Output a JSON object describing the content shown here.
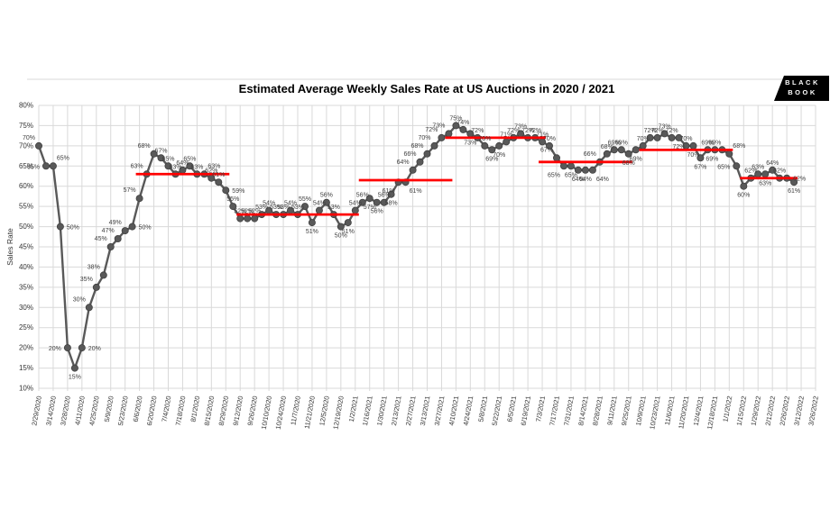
{
  "logo": {
    "line1": "BLACK",
    "line2": "BOOK",
    "bg": "#000000",
    "fg": "#ffffff"
  },
  "chart_data": {
    "type": "line",
    "title": "Estimated Average Weekly Sales Rate at US Auctions in 2020 / 2021",
    "xlabel": "",
    "ylabel": "Sales Rate",
    "ylim": [
      10,
      80
    ],
    "ytick_step": 5,
    "ytick_format": "percent",
    "grid": true,
    "legend": "none",
    "colors": {
      "line": "#595959",
      "marker_fill": "#595959",
      "marker_edge": "#404040",
      "trend": "#FF0000",
      "grid": "#D9D9D9",
      "axis_text": "#333333",
      "data_label": "#404040"
    },
    "x_tick_labels": [
      "2/29/2020",
      "3/14/2020",
      "3/28/2020",
      "4/11/2020",
      "4/25/2020",
      "5/9/2020",
      "5/23/2020",
      "6/6/2020",
      "6/20/2020",
      "7/4/2020",
      "7/18/2020",
      "8/1/2020",
      "8/15/2020",
      "8/29/2020",
      "9/12/2020",
      "9/26/2020",
      "10/10/2020",
      "10/24/2020",
      "11/7/2020",
      "11/21/2020",
      "12/5/2020",
      "12/19/2020",
      "1/2/2021",
      "1/16/2021",
      "1/30/2021",
      "2/13/2021",
      "2/27/2021",
      "3/13/2021",
      "3/27/2021",
      "4/10/2021",
      "4/24/2021",
      "5/8/2021",
      "5/22/2021",
      "6/5/2021",
      "6/19/2021",
      "7/3/2021",
      "7/17/2021",
      "7/31/2021",
      "8/14/2021",
      "8/28/2021",
      "9/11/2021",
      "9/25/2021",
      "10/9/2021",
      "10/23/2021",
      "11/6/2021",
      "11/20/2021",
      "12/4/2021",
      "12/18/2021",
      "1/1/2022",
      "1/15/2022",
      "1/29/2022",
      "2/12/2022",
      "2/26/2022",
      "3/12/2022",
      "3/26/2022"
    ],
    "points": [
      [
        "2/29/2020",
        70,
        "al"
      ],
      [
        "3/7/2020",
        65,
        "l"
      ],
      [
        "3/14/2020",
        65,
        "ar"
      ],
      [
        "3/21/2020",
        50,
        "r"
      ],
      [
        "3/28/2020",
        20,
        "l"
      ],
      [
        "4/4/2020",
        15,
        "b"
      ],
      [
        "4/11/2020",
        20,
        "r"
      ],
      [
        "4/18/2020",
        30,
        "al"
      ],
      [
        "4/25/2020",
        35,
        "al"
      ],
      [
        "5/2/2020",
        38,
        "al"
      ],
      [
        "5/9/2020",
        45,
        "al"
      ],
      [
        "5/16/2020",
        47,
        "al"
      ],
      [
        "5/23/2020",
        49,
        "al"
      ],
      [
        "5/30/2020",
        50,
        "r"
      ],
      [
        "6/6/2020",
        57,
        "al"
      ],
      [
        "6/13/2020",
        63,
        "al"
      ],
      [
        "6/20/2020",
        68,
        "al"
      ],
      [
        "6/27/2020",
        67,
        "a"
      ],
      [
        "7/4/2020",
        65,
        "a"
      ],
      [
        "7/11/2020",
        63,
        "a"
      ],
      [
        "7/18/2020",
        64,
        "a"
      ],
      [
        "7/25/2020",
        65,
        "a"
      ],
      [
        "8/1/2020",
        63,
        "a"
      ],
      [
        "8/8/2020",
        63,
        "ar"
      ],
      [
        "8/15/2020",
        62,
        "a"
      ],
      [
        "8/22/2020",
        61,
        "a"
      ],
      [
        "8/29/2020",
        59,
        "r"
      ],
      [
        "9/5/2020",
        55,
        "a"
      ],
      [
        "9/12/2020",
        52,
        "a"
      ],
      [
        "9/19/2020",
        52,
        "a"
      ],
      [
        "9/26/2020",
        52,
        "a"
      ],
      [
        "10/3/2020",
        53,
        "a"
      ],
      [
        "10/10/2020",
        54,
        "a"
      ],
      [
        "10/17/2020",
        53,
        "a"
      ],
      [
        "10/24/2020",
        53,
        "a"
      ],
      [
        "10/31/2020",
        54,
        "a"
      ],
      [
        "11/7/2020",
        53,
        "a"
      ],
      [
        "11/14/2020",
        55,
        "a"
      ],
      [
        "11/21/2020",
        51,
        "b"
      ],
      [
        "11/28/2020",
        54,
        "a"
      ],
      [
        "12/5/2020",
        56,
        "a"
      ],
      [
        "12/12/2020",
        53,
        "a"
      ],
      [
        "12/19/2020",
        50,
        "b"
      ],
      [
        "12/26/2020",
        51,
        "b"
      ],
      [
        "1/2/2021",
        54,
        "a"
      ],
      [
        "1/9/2021",
        56,
        "a"
      ],
      [
        "1/16/2021",
        57,
        "b"
      ],
      [
        "1/23/2021",
        56,
        "b"
      ],
      [
        "1/30/2021",
        56,
        "a"
      ],
      [
        "2/6/2021",
        58,
        "b"
      ],
      [
        "2/13/2021",
        61,
        "bl"
      ],
      [
        "2/20/2021",
        61,
        "br"
      ],
      [
        "2/27/2021",
        64,
        "al"
      ],
      [
        "3/6/2021",
        66,
        "al"
      ],
      [
        "3/13/2021",
        68,
        "al"
      ],
      [
        "3/20/2021",
        70,
        "al"
      ],
      [
        "3/27/2021",
        72,
        "al"
      ],
      [
        "4/3/2021",
        73,
        "al"
      ],
      [
        "4/10/2021",
        75,
        "a"
      ],
      [
        "4/17/2021",
        74,
        "a"
      ],
      [
        "4/24/2021",
        73,
        "b"
      ],
      [
        "5/1/2021",
        72,
        "a"
      ],
      [
        "5/8/2021",
        70,
        "a"
      ],
      [
        "5/15/2021",
        69,
        "b"
      ],
      [
        "5/22/2021",
        70,
        "b"
      ],
      [
        "5/29/2021",
        71,
        "a"
      ],
      [
        "6/5/2021",
        72,
        "a"
      ],
      [
        "6/12/2021",
        73,
        "a"
      ],
      [
        "6/19/2021",
        72,
        "a"
      ],
      [
        "6/26/2021",
        72,
        "a"
      ],
      [
        "7/3/2021",
        71,
        "a"
      ],
      [
        "7/10/2021",
        70,
        "a"
      ],
      [
        "7/17/2021",
        67,
        "al"
      ],
      [
        "7/24/2021",
        65,
        "bl"
      ],
      [
        "7/31/2021",
        65,
        "b"
      ],
      [
        "8/7/2021",
        64,
        "b"
      ],
      [
        "8/14/2021",
        64,
        "b"
      ],
      [
        "8/21/2021",
        64,
        "br"
      ],
      [
        "8/28/2021",
        66,
        "al"
      ],
      [
        "9/4/2021",
        68,
        "a"
      ],
      [
        "9/11/2021",
        69,
        "a"
      ],
      [
        "9/18/2021",
        69,
        "a"
      ],
      [
        "9/25/2021",
        68,
        "b"
      ],
      [
        "10/2/2021",
        69,
        "b"
      ],
      [
        "10/9/2021",
        70,
        "a"
      ],
      [
        "10/16/2021",
        72,
        "a"
      ],
      [
        "10/23/2021",
        72,
        "a"
      ],
      [
        "10/30/2021",
        73,
        "a"
      ],
      [
        "11/6/2021",
        72,
        "a"
      ],
      [
        "11/13/2021",
        72,
        "b"
      ],
      [
        "11/20/2021",
        70,
        "a"
      ],
      [
        "11/27/2021",
        70,
        "b"
      ],
      [
        "12/4/2021",
        67,
        "b"
      ],
      [
        "12/11/2021",
        69,
        "a"
      ],
      [
        "12/18/2021",
        69,
        "a"
      ],
      [
        "12/25/2021",
        69,
        "bl"
      ],
      [
        "1/1/2022",
        68,
        "ar"
      ],
      [
        "1/8/2022",
        65,
        "l"
      ],
      [
        "1/15/2022",
        60,
        "b"
      ],
      [
        "1/22/2022",
        62,
        "a"
      ],
      [
        "1/29/2022",
        63,
        "a"
      ],
      [
        "2/5/2022",
        63,
        "b"
      ],
      [
        "2/12/2022",
        64,
        "a"
      ],
      [
        "2/19/2022",
        62,
        "a"
      ],
      [
        "2/26/2022",
        62,
        "r"
      ],
      [
        "3/5/2022",
        61,
        "b"
      ]
    ],
    "avg_lines": [
      {
        "from": "6/6/2020",
        "to": "8/29/2020",
        "value": 63
      },
      {
        "from": "9/12/2020",
        "to": "1/2/2021",
        "value": 53
      },
      {
        "from": "1/9/2021",
        "to": "4/3/2021",
        "value": 61.5
      },
      {
        "from": "4/3/2021",
        "to": "7/3/2021",
        "value": 72
      },
      {
        "from": "7/3/2021",
        "to": "9/25/2021",
        "value": 66
      },
      {
        "from": "10/9/2021",
        "to": "1/1/2022",
        "value": 69
      },
      {
        "from": "1/15/2022",
        "to": "3/5/2022",
        "value": 62
      }
    ]
  }
}
